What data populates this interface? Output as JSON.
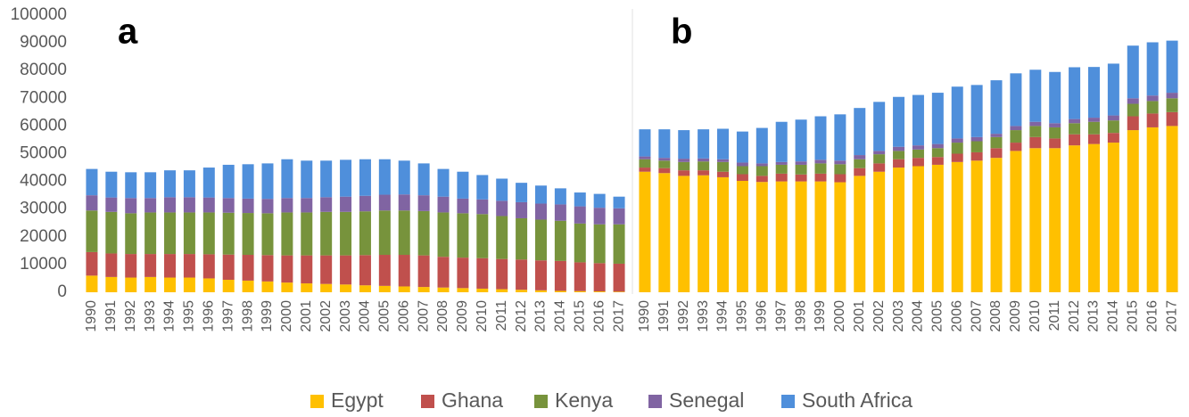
{
  "chart_data": [
    {
      "type": "stacked_bar",
      "label": "a",
      "categories": [
        "1990",
        "1991",
        "1992",
        "1993",
        "1994",
        "1995",
        "1996",
        "1997",
        "1998",
        "1999",
        "2000",
        "2001",
        "2002",
        "2003",
        "2004",
        "2005",
        "2006",
        "2007",
        "2008",
        "2009",
        "2010",
        "2011",
        "2012",
        "2013",
        "2014",
        "2015",
        "2016",
        "2017"
      ],
      "ylim": [
        0,
        100000
      ],
      "yticks": [
        0,
        10000,
        20000,
        30000,
        40000,
        50000,
        60000,
        70000,
        80000,
        90000,
        100000
      ],
      "series": [
        {
          "name": "Egypt",
          "color": "#FFC000",
          "values": [
            6000,
            5500,
            5300,
            5500,
            5300,
            5300,
            5000,
            4500,
            4200,
            3900,
            3500,
            3200,
            3000,
            2800,
            2500,
            2300,
            2100,
            1900,
            1700,
            1500,
            1300,
            1100,
            900,
            700,
            500,
            400,
            300,
            200
          ]
        },
        {
          "name": "Ghana",
          "color": "#C0504D",
          "values": [
            8500,
            8500,
            8500,
            8300,
            8500,
            8500,
            8700,
            9100,
            9300,
            9500,
            9800,
            10100,
            10300,
            10500,
            10900,
            11200,
            11400,
            11400,
            11100,
            11000,
            11000,
            10900,
            10900,
            10800,
            10800,
            10400,
            10200,
            10100
          ]
        },
        {
          "name": "Kenya",
          "color": "#77933C",
          "values": [
            15000,
            15000,
            14700,
            15000,
            15000,
            15000,
            15100,
            15100,
            15100,
            15100,
            15500,
            15500,
            15700,
            15700,
            15800,
            16000,
            16000,
            16000,
            16000,
            16000,
            15900,
            15500,
            14900,
            14700,
            14500,
            14000,
            14000,
            14200
          ]
        },
        {
          "name": "Senegal",
          "color": "#8064A2",
          "values": [
            5500,
            5200,
            5500,
            5200,
            5500,
            5500,
            5400,
            5300,
            5200,
            5200,
            5200,
            5200,
            5300,
            5500,
            5600,
            5700,
            5800,
            5700,
            5700,
            5300,
            5300,
            5500,
            5800,
            5800,
            5900,
            6200,
            6000,
            5800
          ]
        },
        {
          "name": "South Africa",
          "color": "#4F8FDB",
          "values": [
            9500,
            9300,
            9300,
            9300,
            9700,
            9700,
            10800,
            12000,
            12400,
            12800,
            14000,
            13500,
            13200,
            13300,
            13200,
            12800,
            12200,
            11500,
            10000,
            9700,
            8800,
            8000,
            7000,
            6500,
            5800,
            5000,
            5000,
            4200
          ]
        }
      ]
    },
    {
      "type": "stacked_bar",
      "label": "b",
      "categories": [
        "1990",
        "1991",
        "1992",
        "1993",
        "1994",
        "1995",
        "1996",
        "1997",
        "1998",
        "1999",
        "2000",
        "2001",
        "2002",
        "2003",
        "2004",
        "2005",
        "2006",
        "2007",
        "2008",
        "2009",
        "2010",
        "2011",
        "2012",
        "2013",
        "2014",
        "2015",
        "2016",
        "2017"
      ],
      "ylim": [
        0,
        100000
      ],
      "series": [
        {
          "values": [
            43500,
            43000,
            42000,
            42200,
            41500,
            40200,
            39800,
            40000,
            40000,
            40000,
            39700,
            42000,
            43500,
            45000,
            45500,
            46000,
            47000,
            47500,
            48500,
            51000,
            52000,
            52000,
            53000,
            53500,
            54000,
            58500,
            59500,
            60000
          ]
        },
        {
          "values": [
            1500,
            1800,
            2000,
            1800,
            2000,
            2400,
            2200,
            2800,
            2500,
            2800,
            2900,
            2800,
            3000,
            3000,
            3000,
            2800,
            3000,
            3000,
            3500,
            3000,
            4000,
            3500,
            4000,
            3500,
            3500,
            5000,
            5000,
            5000
          ]
        },
        {
          "values": [
            3000,
            2700,
            3000,
            3200,
            3500,
            2900,
            3500,
            3200,
            3500,
            3700,
            3600,
            3200,
            3300,
            3000,
            3000,
            3200,
            4000,
            4000,
            4000,
            4500,
            4000,
            4000,
            4000,
            4500,
            4500,
            4500,
            4500,
            5000
          ]
        },
        {
          "values": [
            1000,
            1000,
            1200,
            1100,
            1000,
            1300,
            1000,
            1000,
            1200,
            1300,
            1300,
            1500,
            1200,
            1500,
            1500,
            1500,
            1500,
            1500,
            1200,
            1500,
            1500,
            1500,
            1500,
            1500,
            1800,
            2000,
            2000,
            2000
          ]
        },
        {
          "values": [
            9800,
            10300,
            10300,
            10500,
            11000,
            11200,
            12800,
            14500,
            15100,
            15700,
            16700,
            17000,
            17700,
            18000,
            18200,
            18500,
            18700,
            18800,
            19300,
            19000,
            18800,
            18500,
            18700,
            18300,
            18700,
            19000,
            19200,
            18800
          ]
        }
      ]
    }
  ]
}
